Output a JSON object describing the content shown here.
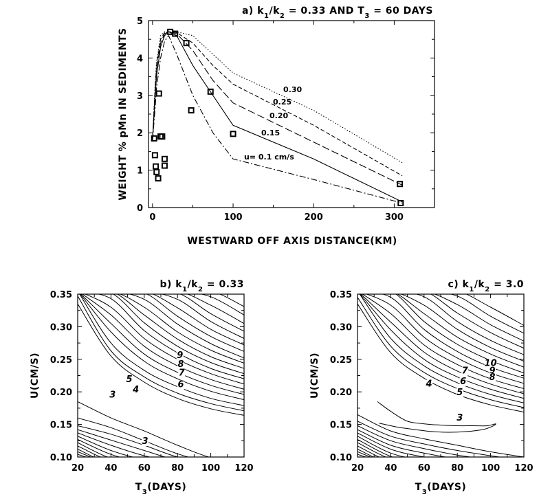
{
  "chart_data": [
    {
      "type": "line",
      "title": "a) k1/k2 = 0.33 AND T3 = 60 DAYS",
      "title_parts": [
        "a) k",
        "1",
        "/k",
        "2",
        " = 0.33 AND T",
        "3",
        " = 60 DAYS"
      ],
      "xlabel": "WESTWARD OFF AXIS DISTANCE(KM)",
      "ylabel": "WEIGHT % pMn IN SEDIMENTS",
      "xlim": [
        -5,
        350
      ],
      "ylim": [
        0,
        5
      ],
      "xticks": [
        0,
        100,
        200,
        300
      ],
      "yticks": [
        0,
        1,
        2,
        3,
        4,
        5
      ],
      "grid": false,
      "series": [
        {
          "name": "u= 0.1 cm/s",
          "style": "dashdot",
          "x": [
            0,
            3,
            5,
            10,
            15,
            20,
            30,
            50,
            75,
            100,
            200,
            310
          ],
          "y": [
            1.8,
            2.6,
            3.2,
            4.0,
            4.45,
            4.6,
            4.1,
            3.0,
            2.0,
            1.3,
            0.75,
            0.12
          ]
        },
        {
          "name": "0.15",
          "style": "solid",
          "x": [
            0,
            3,
            5,
            10,
            15,
            20,
            30,
            50,
            75,
            100,
            200,
            310
          ],
          "y": [
            1.8,
            2.9,
            3.5,
            4.3,
            4.6,
            4.7,
            4.6,
            3.8,
            3.0,
            2.2,
            1.3,
            0.15
          ]
        },
        {
          "name": "0.20",
          "style": "longdash",
          "x": [
            0,
            3,
            5,
            10,
            15,
            20,
            30,
            50,
            75,
            100,
            200,
            310
          ],
          "y": [
            1.8,
            3.0,
            3.7,
            4.4,
            4.65,
            4.7,
            4.65,
            4.2,
            3.4,
            2.8,
            1.75,
            0.6
          ]
        },
        {
          "name": "0.25",
          "style": "dash",
          "x": [
            0,
            3,
            5,
            10,
            15,
            20,
            30,
            50,
            75,
            100,
            200,
            310
          ],
          "y": [
            1.8,
            3.1,
            3.8,
            4.5,
            4.68,
            4.7,
            4.68,
            4.4,
            3.8,
            3.3,
            2.2,
            0.85
          ]
        },
        {
          "name": "0.30",
          "style": "dotted",
          "x": [
            0,
            3,
            5,
            10,
            15,
            20,
            30,
            50,
            75,
            100,
            200,
            310
          ],
          "y": [
            1.8,
            3.2,
            3.9,
            4.6,
            4.7,
            4.7,
            4.7,
            4.6,
            4.1,
            3.6,
            2.6,
            1.2
          ]
        }
      ],
      "observations": {
        "x": [
          2,
          3,
          4,
          5,
          7,
          8,
          10,
          12,
          15,
          15,
          22,
          28,
          42,
          48,
          72,
          100,
          307,
          308
        ],
        "y": [
          1.85,
          1.4,
          1.1,
          0.95,
          0.78,
          3.05,
          1.9,
          1.9,
          1.3,
          1.12,
          4.7,
          4.65,
          4.4,
          2.6,
          3.1,
          1.97,
          0.63,
          0.12
        ]
      }
    },
    {
      "type": "contour",
      "title": "b) k1/k2 = 0.33",
      "title_parts": [
        "b) k",
        "1",
        "/k",
        "2",
        " = 0.33"
      ],
      "xlabel": "T3(DAYS)",
      "xlabel_parts": [
        "T",
        "3",
        "(DAYS)"
      ],
      "ylabel": "U(CM/S)",
      "xlim": [
        20,
        120
      ],
      "ylim": [
        0.1,
        0.35
      ],
      "xticks": [
        20,
        40,
        60,
        80,
        100,
        120
      ],
      "yticks": [
        0.1,
        0.15,
        0.2,
        0.25,
        0.3,
        0.35
      ],
      "contour_labels": [
        {
          "text": "9",
          "x": 81.5,
          "y": 0.252
        },
        {
          "text": "8",
          "x": 82,
          "y": 0.238
        },
        {
          "text": "7",
          "x": 82.5,
          "y": 0.225
        },
        {
          "text": "6",
          "x": 82,
          "y": 0.207
        },
        {
          "text": "5",
          "x": 51,
          "y": 0.215
        },
        {
          "text": "4",
          "x": 55,
          "y": 0.199
        },
        {
          "text": "3",
          "x": 41,
          "y": 0.191
        },
        {
          "text": "3",
          "x": 60.5,
          "y": 0.12
        }
      ],
      "upper_lines": {
        "x": [
          20,
          40,
          60,
          80,
          100,
          120
        ],
        "y": [
          [
            0.335,
            0.255,
            0.215,
            0.19,
            0.174,
            0.164
          ],
          [
            0.347,
            0.263,
            0.223,
            0.198,
            0.182,
            0.171
          ],
          [
            0.355,
            0.275,
            0.233,
            0.208,
            0.19,
            0.179
          ],
          [
            0.355,
            0.292,
            0.247,
            0.22,
            0.201,
            0.188
          ],
          [
            0.355,
            0.305,
            0.258,
            0.23,
            0.21,
            0.196
          ],
          [
            0.355,
            0.318,
            0.27,
            0.24,
            0.219,
            0.204
          ],
          [
            0.355,
            0.33,
            0.282,
            0.25,
            0.228,
            0.212
          ],
          [
            0.355,
            0.343,
            0.294,
            0.26,
            0.236,
            0.22
          ],
          [
            0.355,
            0.352,
            0.306,
            0.27,
            0.245,
            0.228
          ],
          [
            0.355,
            0.355,
            0.318,
            0.281,
            0.254,
            0.236
          ],
          [
            0.355,
            0.355,
            0.33,
            0.292,
            0.264,
            0.244
          ],
          [
            0.355,
            0.355,
            0.342,
            0.304,
            0.274,
            0.252
          ],
          [
            0.355,
            0.355,
            0.352,
            0.316,
            0.285,
            0.262
          ],
          [
            0.355,
            0.355,
            0.355,
            0.329,
            0.296,
            0.272
          ],
          [
            0.355,
            0.355,
            0.355,
            0.342,
            0.308,
            0.282
          ],
          [
            0.355,
            0.355,
            0.355,
            0.352,
            0.32,
            0.293
          ],
          [
            0.355,
            0.355,
            0.355,
            0.355,
            0.333,
            0.305
          ],
          [
            0.355,
            0.355,
            0.355,
            0.355,
            0.346,
            0.318
          ],
          [
            0.355,
            0.355,
            0.355,
            0.355,
            0.355,
            0.331
          ]
        ]
      },
      "lower_lines": {
        "x": [
          20,
          40,
          60,
          80,
          100,
          120
        ],
        "y": [
          [
            0.185,
            0.16,
            0.14,
            0.118,
            0.099,
            0.09
          ],
          [
            0.16,
            0.145,
            0.125,
            0.105,
            0.092,
            0.09
          ],
          [
            0.148,
            0.135,
            0.118,
            0.1,
            0.09,
            0.09
          ],
          [
            0.142,
            0.126,
            0.11,
            0.095,
            0.09,
            0.09
          ],
          [
            0.137,
            0.118,
            0.102,
            0.092,
            0.09,
            0.09
          ],
          [
            0.132,
            0.11,
            0.096,
            0.09,
            0.09,
            0.09
          ],
          [
            0.127,
            0.104,
            0.092,
            0.09,
            0.09,
            0.09
          ],
          [
            0.122,
            0.098,
            0.09,
            0.09,
            0.09,
            0.09
          ],
          [
            0.117,
            0.094,
            0.09,
            0.09,
            0.09,
            0.09
          ],
          [
            0.112,
            0.09,
            0.09,
            0.09,
            0.09,
            0.09
          ],
          [
            0.108,
            0.09,
            0.09,
            0.09,
            0.09,
            0.09
          ],
          [
            0.104,
            0.09,
            0.09,
            0.09,
            0.09,
            0.09
          ]
        ]
      }
    },
    {
      "type": "contour",
      "title": "c) k1/k2 = 3.0",
      "title_parts": [
        "c) k",
        "1",
        "/k",
        "2",
        " = 3.0"
      ],
      "xlabel": "T3(DAYS)",
      "xlabel_parts": [
        "T",
        "3",
        "(DAYS)"
      ],
      "ylabel": "U(CM/S)",
      "xlim": [
        20,
        120
      ],
      "ylim": [
        0.1,
        0.35
      ],
      "xticks": [
        20,
        40,
        60,
        80,
        100,
        120
      ],
      "yticks": [
        0.1,
        0.15,
        0.2,
        0.25,
        0.3,
        0.35
      ],
      "contour_labels": [
        {
          "text": "10",
          "x": 100,
          "y": 0.24
        },
        {
          "text": "9",
          "x": 101,
          "y": 0.228
        },
        {
          "text": "8",
          "x": 101,
          "y": 0.218
        },
        {
          "text": "7",
          "x": 84.5,
          "y": 0.228
        },
        {
          "text": "6",
          "x": 83.5,
          "y": 0.212
        },
        {
          "text": "5",
          "x": 81.5,
          "y": 0.195
        },
        {
          "text": "4",
          "x": 63,
          "y": 0.208
        },
        {
          "text": "3",
          "x": 81.5,
          "y": 0.156
        }
      ],
      "upper_lines": {
        "x": [
          20,
          40,
          60,
          80,
          100,
          120
        ],
        "y": [
          [
            0.335,
            0.26,
            0.221,
            0.196,
            0.18,
            0.169
          ],
          [
            0.345,
            0.27,
            0.23,
            0.205,
            0.188,
            0.176
          ],
          [
            0.355,
            0.282,
            0.24,
            0.214,
            0.196,
            0.183
          ],
          [
            0.355,
            0.295,
            0.25,
            0.223,
            0.204,
            0.19
          ],
          [
            0.355,
            0.307,
            0.261,
            0.232,
            0.212,
            0.197
          ],
          [
            0.355,
            0.32,
            0.272,
            0.242,
            0.22,
            0.205
          ],
          [
            0.355,
            0.333,
            0.284,
            0.252,
            0.229,
            0.213
          ],
          [
            0.355,
            0.345,
            0.296,
            0.262,
            0.238,
            0.221
          ],
          [
            0.355,
            0.355,
            0.308,
            0.273,
            0.248,
            0.229
          ],
          [
            0.355,
            0.355,
            0.32,
            0.284,
            0.258,
            0.238
          ],
          [
            0.355,
            0.355,
            0.333,
            0.296,
            0.268,
            0.247
          ],
          [
            0.355,
            0.355,
            0.346,
            0.308,
            0.279,
            0.257
          ],
          [
            0.355,
            0.355,
            0.355,
            0.321,
            0.291,
            0.267
          ],
          [
            0.355,
            0.355,
            0.355,
            0.334,
            0.303,
            0.278
          ],
          [
            0.355,
            0.355,
            0.355,
            0.347,
            0.316,
            0.29
          ],
          [
            0.355,
            0.355,
            0.355,
            0.355,
            0.33,
            0.302
          ]
        ]
      },
      "curve_3": {
        "x": [
          32,
          40,
          50,
          60,
          70,
          80,
          90,
          98,
          103,
          101,
          95,
          85,
          75,
          65,
          58,
          52,
          46,
          40,
          33
        ],
        "y": [
          0.185,
          0.17,
          0.155,
          0.151,
          0.149,
          0.148,
          0.148,
          0.148,
          0.151,
          0.147,
          0.142,
          0.139,
          0.138,
          0.139,
          0.141,
          0.143,
          0.145,
          0.148,
          0.152
        ]
      },
      "lower_lines": {
        "x": [
          20,
          40,
          60,
          80,
          100,
          120
        ],
        "y": [
          [
            0.165,
            0.14,
            0.128,
            0.118,
            0.108,
            0.1
          ],
          [
            0.155,
            0.132,
            0.12,
            0.11,
            0.102,
            0.095
          ],
          [
            0.148,
            0.125,
            0.113,
            0.103,
            0.096,
            0.09
          ],
          [
            0.142,
            0.118,
            0.106,
            0.097,
            0.09,
            0.09
          ],
          [
            0.137,
            0.112,
            0.1,
            0.092,
            0.09,
            0.09
          ],
          [
            0.132,
            0.106,
            0.095,
            0.09,
            0.09,
            0.09
          ],
          [
            0.127,
            0.101,
            0.091,
            0.09,
            0.09,
            0.09
          ],
          [
            0.122,
            0.097,
            0.09,
            0.09,
            0.09,
            0.09
          ],
          [
            0.117,
            0.093,
            0.09,
            0.09,
            0.09,
            0.09
          ],
          [
            0.112,
            0.09,
            0.09,
            0.09,
            0.09,
            0.09
          ],
          [
            0.108,
            0.09,
            0.09,
            0.09,
            0.09,
            0.09
          ],
          [
            0.104,
            0.09,
            0.09,
            0.09,
            0.09,
            0.09
          ]
        ]
      }
    }
  ]
}
